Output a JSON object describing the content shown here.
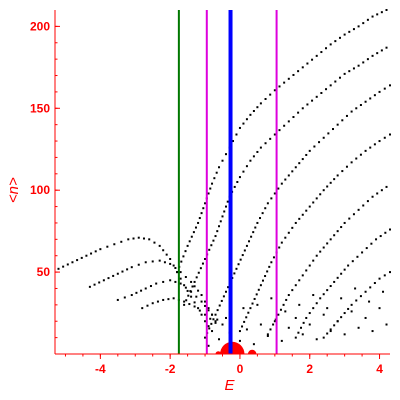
{
  "chart_data": {
    "type": "scatter",
    "xlabel": "E",
    "ylabel": "<n>",
    "xlim": [
      -5.3,
      4.3
    ],
    "ylim": [
      0,
      210
    ],
    "x_ticks": [
      "-4",
      "-2",
      "0",
      "2",
      "4"
    ],
    "y_ticks": [
      "50",
      "100",
      "150",
      "200"
    ],
    "grid": false,
    "colors": {
      "axis": "#ff0000",
      "points": "#000000",
      "line_green": "#007700",
      "line_magenta": "#dd00dd",
      "line_blue": "#0000ff",
      "blob": "#ff0000"
    },
    "vertical_lines": [
      {
        "x": -1.75,
        "color": "green"
      },
      {
        "x": -0.95,
        "color": "magenta"
      },
      {
        "x": -0.27,
        "color": "blue"
      },
      {
        "x": 1.05,
        "color": "magenta"
      }
    ],
    "series": [
      {
        "points": [
          [
            -5.2,
            52
          ],
          [
            -4.8,
            56
          ],
          [
            -4.4,
            60
          ],
          [
            -4.0,
            64
          ],
          [
            -3.6,
            67
          ],
          [
            -3.2,
            70
          ],
          [
            -2.9,
            71
          ],
          [
            -2.6,
            70
          ],
          [
            -2.3,
            66
          ],
          [
            -2.0,
            58
          ],
          [
            -1.8,
            50
          ],
          [
            -1.6,
            42
          ],
          [
            -1.4,
            35
          ],
          [
            -1.2,
            28
          ],
          [
            -1.0,
            20
          ],
          [
            -0.8,
            14
          ]
        ]
      },
      {
        "points": [
          [
            -4.3,
            41
          ],
          [
            -3.9,
            45
          ],
          [
            -3.5,
            49
          ],
          [
            -3.1,
            53
          ],
          [
            -2.7,
            56
          ],
          [
            -2.3,
            57
          ],
          [
            -2.0,
            55
          ],
          [
            -1.7,
            50
          ],
          [
            -1.4,
            44
          ],
          [
            -1.1,
            36
          ],
          [
            -0.9,
            28
          ],
          [
            -0.7,
            20
          ]
        ]
      },
      {
        "points": [
          [
            -3.5,
            33
          ],
          [
            -3.1,
            36
          ],
          [
            -2.7,
            40
          ],
          [
            -2.4,
            43
          ],
          [
            -2.0,
            45
          ],
          [
            -1.7,
            43
          ],
          [
            -1.4,
            38
          ],
          [
            -1.1,
            32
          ],
          [
            -0.8,
            24
          ],
          [
            -0.5,
            18
          ]
        ]
      },
      {
        "points": [
          [
            -2.8,
            28
          ],
          [
            -2.5,
            31
          ],
          [
            -2.2,
            33
          ],
          [
            -1.9,
            34
          ],
          [
            -1.6,
            32
          ],
          [
            -1.3,
            29
          ],
          [
            -1.0,
            24
          ],
          [
            -0.7,
            19
          ]
        ]
      },
      {
        "points": [
          [
            -1.8,
            50
          ],
          [
            -1.5,
            66
          ],
          [
            -1.2,
            80
          ],
          [
            -1.0,
            92
          ],
          [
            -0.8,
            104
          ],
          [
            -0.6,
            114
          ],
          [
            -0.4,
            122
          ],
          [
            -0.2,
            130
          ],
          [
            0.0,
            138
          ],
          [
            0.3,
            146
          ],
          [
            0.6,
            153
          ],
          [
            1.0,
            161
          ],
          [
            1.4,
            168
          ],
          [
            1.8,
            175
          ],
          [
            2.2,
            182
          ],
          [
            2.6,
            189
          ],
          [
            3.0,
            195
          ],
          [
            3.4,
            200
          ],
          [
            3.8,
            206
          ],
          [
            4.2,
            210
          ]
        ]
      },
      {
        "points": [
          [
            -1.6,
            30
          ],
          [
            -1.3,
            44
          ],
          [
            -1.0,
            58
          ],
          [
            -0.7,
            72
          ],
          [
            -0.5,
            84
          ],
          [
            -0.3,
            96
          ],
          [
            0.0,
            108
          ],
          [
            0.3,
            118
          ],
          [
            0.6,
            126
          ],
          [
            1.0,
            134
          ],
          [
            1.4,
            142
          ],
          [
            1.8,
            150
          ],
          [
            2.2,
            157
          ],
          [
            2.6,
            164
          ],
          [
            3.0,
            171
          ],
          [
            3.4,
            176
          ],
          [
            3.8,
            182
          ],
          [
            4.2,
            187
          ]
        ]
      },
      {
        "points": [
          [
            -1.0,
            10
          ],
          [
            -0.7,
            24
          ],
          [
            -0.4,
            38
          ],
          [
            -0.1,
            52
          ],
          [
            0.2,
            66
          ],
          [
            0.5,
            80
          ],
          [
            0.8,
            92
          ],
          [
            1.2,
            104
          ],
          [
            1.6,
            114
          ],
          [
            2.0,
            124
          ],
          [
            2.4,
            132
          ],
          [
            2.8,
            140
          ],
          [
            3.2,
            148
          ],
          [
            3.6,
            154
          ],
          [
            4.0,
            160
          ],
          [
            4.3,
            164
          ]
        ]
      },
      {
        "points": [
          [
            0.0,
            14
          ],
          [
            0.3,
            28
          ],
          [
            0.6,
            42
          ],
          [
            0.9,
            56
          ],
          [
            1.2,
            68
          ],
          [
            1.6,
            80
          ],
          [
            2.0,
            90
          ],
          [
            2.4,
            100
          ],
          [
            2.8,
            109
          ],
          [
            3.2,
            117
          ],
          [
            3.6,
            124
          ],
          [
            4.0,
            130
          ],
          [
            4.3,
            134
          ]
        ]
      },
      {
        "points": [
          [
            0.8,
            12
          ],
          [
            1.1,
            24
          ],
          [
            1.4,
            36
          ],
          [
            1.8,
            48
          ],
          [
            2.2,
            60
          ],
          [
            2.6,
            70
          ],
          [
            3.0,
            80
          ],
          [
            3.4,
            88
          ],
          [
            3.8,
            96
          ],
          [
            4.2,
            102
          ]
        ]
      },
      {
        "points": [
          [
            1.6,
            10
          ],
          [
            1.9,
            22
          ],
          [
            2.3,
            34
          ],
          [
            2.7,
            44
          ],
          [
            3.1,
            54
          ],
          [
            3.5,
            62
          ],
          [
            3.9,
            70
          ],
          [
            4.3,
            76
          ]
        ]
      },
      {
        "points": [
          [
            2.4,
            10
          ],
          [
            2.8,
            20
          ],
          [
            3.2,
            30
          ],
          [
            3.6,
            38
          ],
          [
            4.0,
            46
          ],
          [
            4.3,
            50
          ]
        ]
      },
      {
        "points": [
          [
            -0.9,
            5
          ],
          [
            -0.6,
            9
          ],
          [
            -0.3,
            13
          ],
          [
            0.0,
            8
          ],
          [
            0.2,
            15
          ],
          [
            0.4,
            6
          ],
          [
            0.6,
            18
          ],
          [
            0.8,
            11
          ],
          [
            1.0,
            20
          ],
          [
            1.2,
            8
          ],
          [
            1.4,
            16
          ],
          [
            1.6,
            22
          ],
          [
            1.8,
            12
          ],
          [
            2.0,
            18
          ],
          [
            2.2,
            9
          ],
          [
            2.4,
            24
          ],
          [
            2.6,
            14
          ],
          [
            2.8,
            20
          ],
          [
            3.0,
            12
          ],
          [
            3.2,
            26
          ],
          [
            3.4,
            16
          ],
          [
            3.6,
            22
          ],
          [
            3.8,
            14
          ],
          [
            4.0,
            28
          ],
          [
            4.2,
            18
          ],
          [
            -0.4,
            22
          ],
          [
            0.1,
            28
          ],
          [
            0.5,
            30
          ],
          [
            0.9,
            34
          ],
          [
            1.3,
            26
          ],
          [
            1.7,
            30
          ],
          [
            2.1,
            36
          ],
          [
            2.5,
            28
          ],
          [
            2.9,
            34
          ],
          [
            3.3,
            40
          ],
          [
            3.7,
            32
          ],
          [
            4.1,
            38
          ]
        ]
      }
    ],
    "blobs": [
      {
        "x": -0.22,
        "y": 0,
        "r": 0.35
      },
      {
        "x": 0.35,
        "y": 0,
        "r": 0.12
      },
      {
        "x": -0.62,
        "y": 0,
        "r": 0.08
      }
    ]
  }
}
